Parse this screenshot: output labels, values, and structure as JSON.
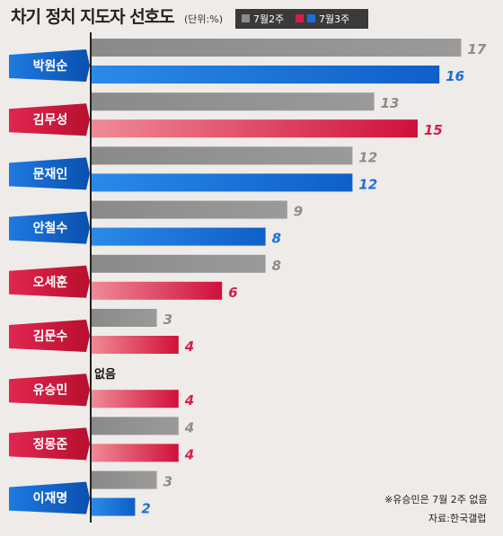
{
  "title": "차기 정치 지도자 선호도",
  "unit": "(단위:%)",
  "colors": {
    "jul2": "#8c8c8c",
    "jul3_ruling": "#1a6fd6",
    "jul3_opposition": "#d6204a",
    "background": "#eeebe8"
  },
  "chart_data": {
    "type": "bar",
    "orientation": "horizontal",
    "title": "차기 정치 지도자 선호도",
    "unit": "(단위:%)",
    "categories": [
      "박원순",
      "김무성",
      "문재인",
      "안철수",
      "오세훈",
      "김문수",
      "유승민",
      "정몽준",
      "이재명"
    ],
    "series": [
      {
        "name": "7월2주",
        "values": [
          17,
          13,
          12,
          9,
          8,
          3,
          null,
          4,
          3
        ]
      },
      {
        "name": "7월3주",
        "values": [
          16,
          15,
          12,
          8,
          6,
          4,
          4,
          4,
          2
        ]
      }
    ],
    "xlim": [
      0,
      17
    ],
    "legend_position": "top"
  },
  "missing_label": "없음",
  "footnote": "※유승민은 7월 2주 없음",
  "source": "자료:한국갤럽"
}
